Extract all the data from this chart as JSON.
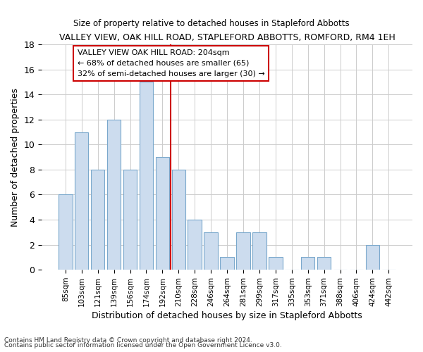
{
  "title": "VALLEY VIEW, OAK HILL ROAD, STAPLEFORD ABBOTTS, ROMFORD, RM4 1EH",
  "subtitle": "Size of property relative to detached houses in Stapleford Abbotts",
  "xlabel": "Distribution of detached houses by size in Stapleford Abbotts",
  "ylabel": "Number of detached properties",
  "categories": [
    "85sqm",
    "103sqm",
    "121sqm",
    "139sqm",
    "156sqm",
    "174sqm",
    "192sqm",
    "210sqm",
    "228sqm",
    "246sqm",
    "264sqm",
    "281sqm",
    "299sqm",
    "317sqm",
    "335sqm",
    "353sqm",
    "371sqm",
    "388sqm",
    "406sqm",
    "424sqm",
    "442sqm"
  ],
  "values": [
    6,
    11,
    8,
    12,
    8,
    15,
    9,
    8,
    4,
    3,
    1,
    3,
    3,
    1,
    0,
    1,
    1,
    0,
    0,
    2,
    0
  ],
  "bar_color": "#ccdcee",
  "bar_edge_color": "#7aa8cc",
  "grid_color": "#cccccc",
  "vline_position": 6.5,
  "vline_color": "#cc0000",
  "annotation_text": "VALLEY VIEW OAK HILL ROAD: 204sqm\n← 68% of detached houses are smaller (65)\n32% of semi-detached houses are larger (30) →",
  "annotation_box_color": "white",
  "annotation_box_edge": "#cc0000",
  "ylim": [
    0,
    18
  ],
  "yticks": [
    0,
    2,
    4,
    6,
    8,
    10,
    12,
    14,
    16,
    18
  ],
  "footnote1": "Contains HM Land Registry data © Crown copyright and database right 2024.",
  "footnote2": "Contains public sector information licensed under the Open Government Licence v3.0.",
  "bg_color": "#ffffff"
}
